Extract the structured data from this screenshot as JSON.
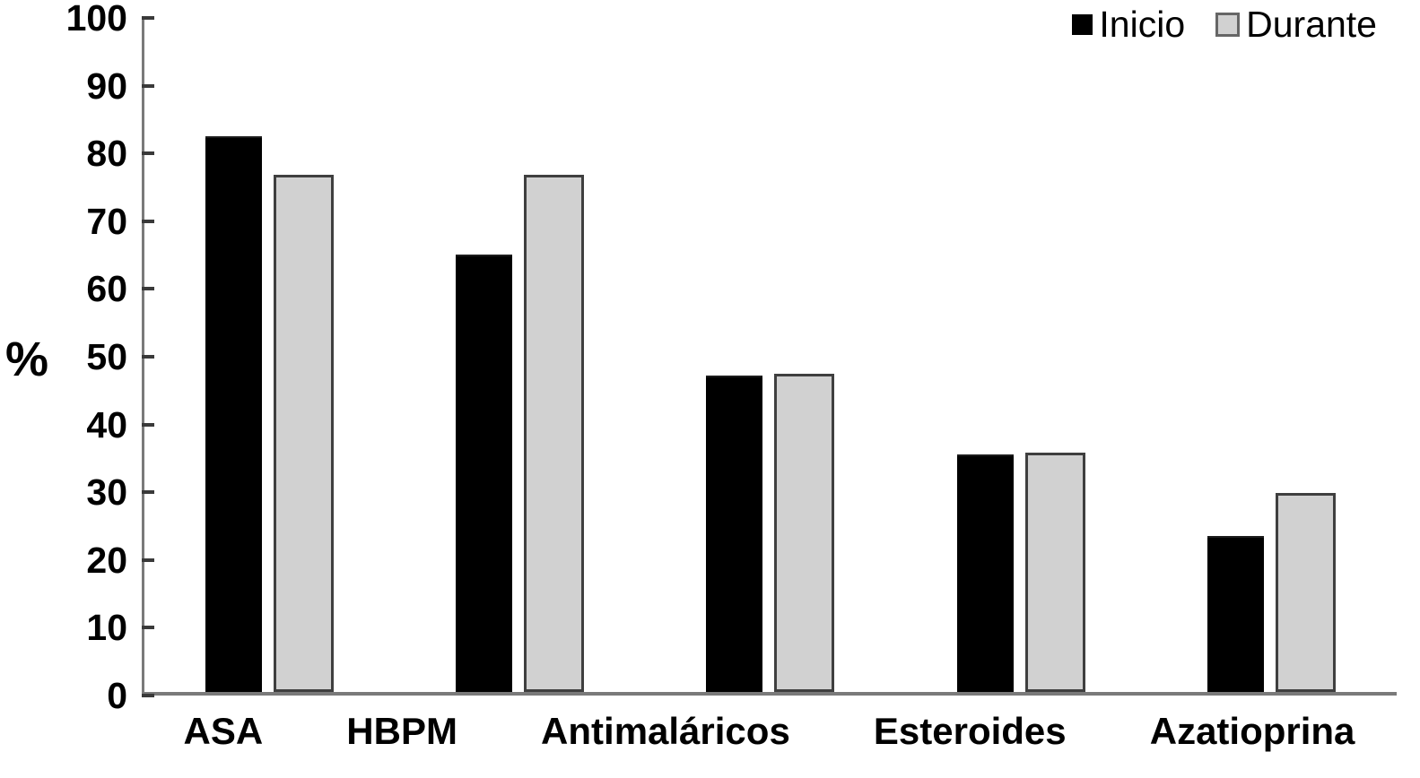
{
  "chart_data": {
    "type": "bar",
    "title": "",
    "categories": [
      "ASA",
      "HBPM",
      "Antimaláricos",
      "Esteroides",
      "Azatioprina"
    ],
    "series": [
      {
        "name": "Inicio",
        "color": "#000000",
        "values": [
          82,
          64.5,
          46.7,
          35,
          23
        ]
      },
      {
        "name": "Durante",
        "color": "#d1d1d1",
        "border_color": "#3f3f3f",
        "values": [
          76.3,
          76.3,
          47,
          35.3,
          29.3
        ]
      }
    ],
    "xlabel": "",
    "ylabel": "%",
    "ylim": [
      0,
      100
    ],
    "ytick_interval": 10,
    "ytick_labels": [
      "0",
      "10",
      "20",
      "30",
      "40",
      "50",
      "60",
      "70",
      "80",
      "90",
      "100"
    ],
    "legend_position": "top-right",
    "grid": false,
    "axis_color": "#7a7a7a",
    "tick_color": "#3a3a3a"
  },
  "legend": {
    "items": [
      {
        "label": "Inicio"
      },
      {
        "label": "Durante"
      }
    ]
  }
}
